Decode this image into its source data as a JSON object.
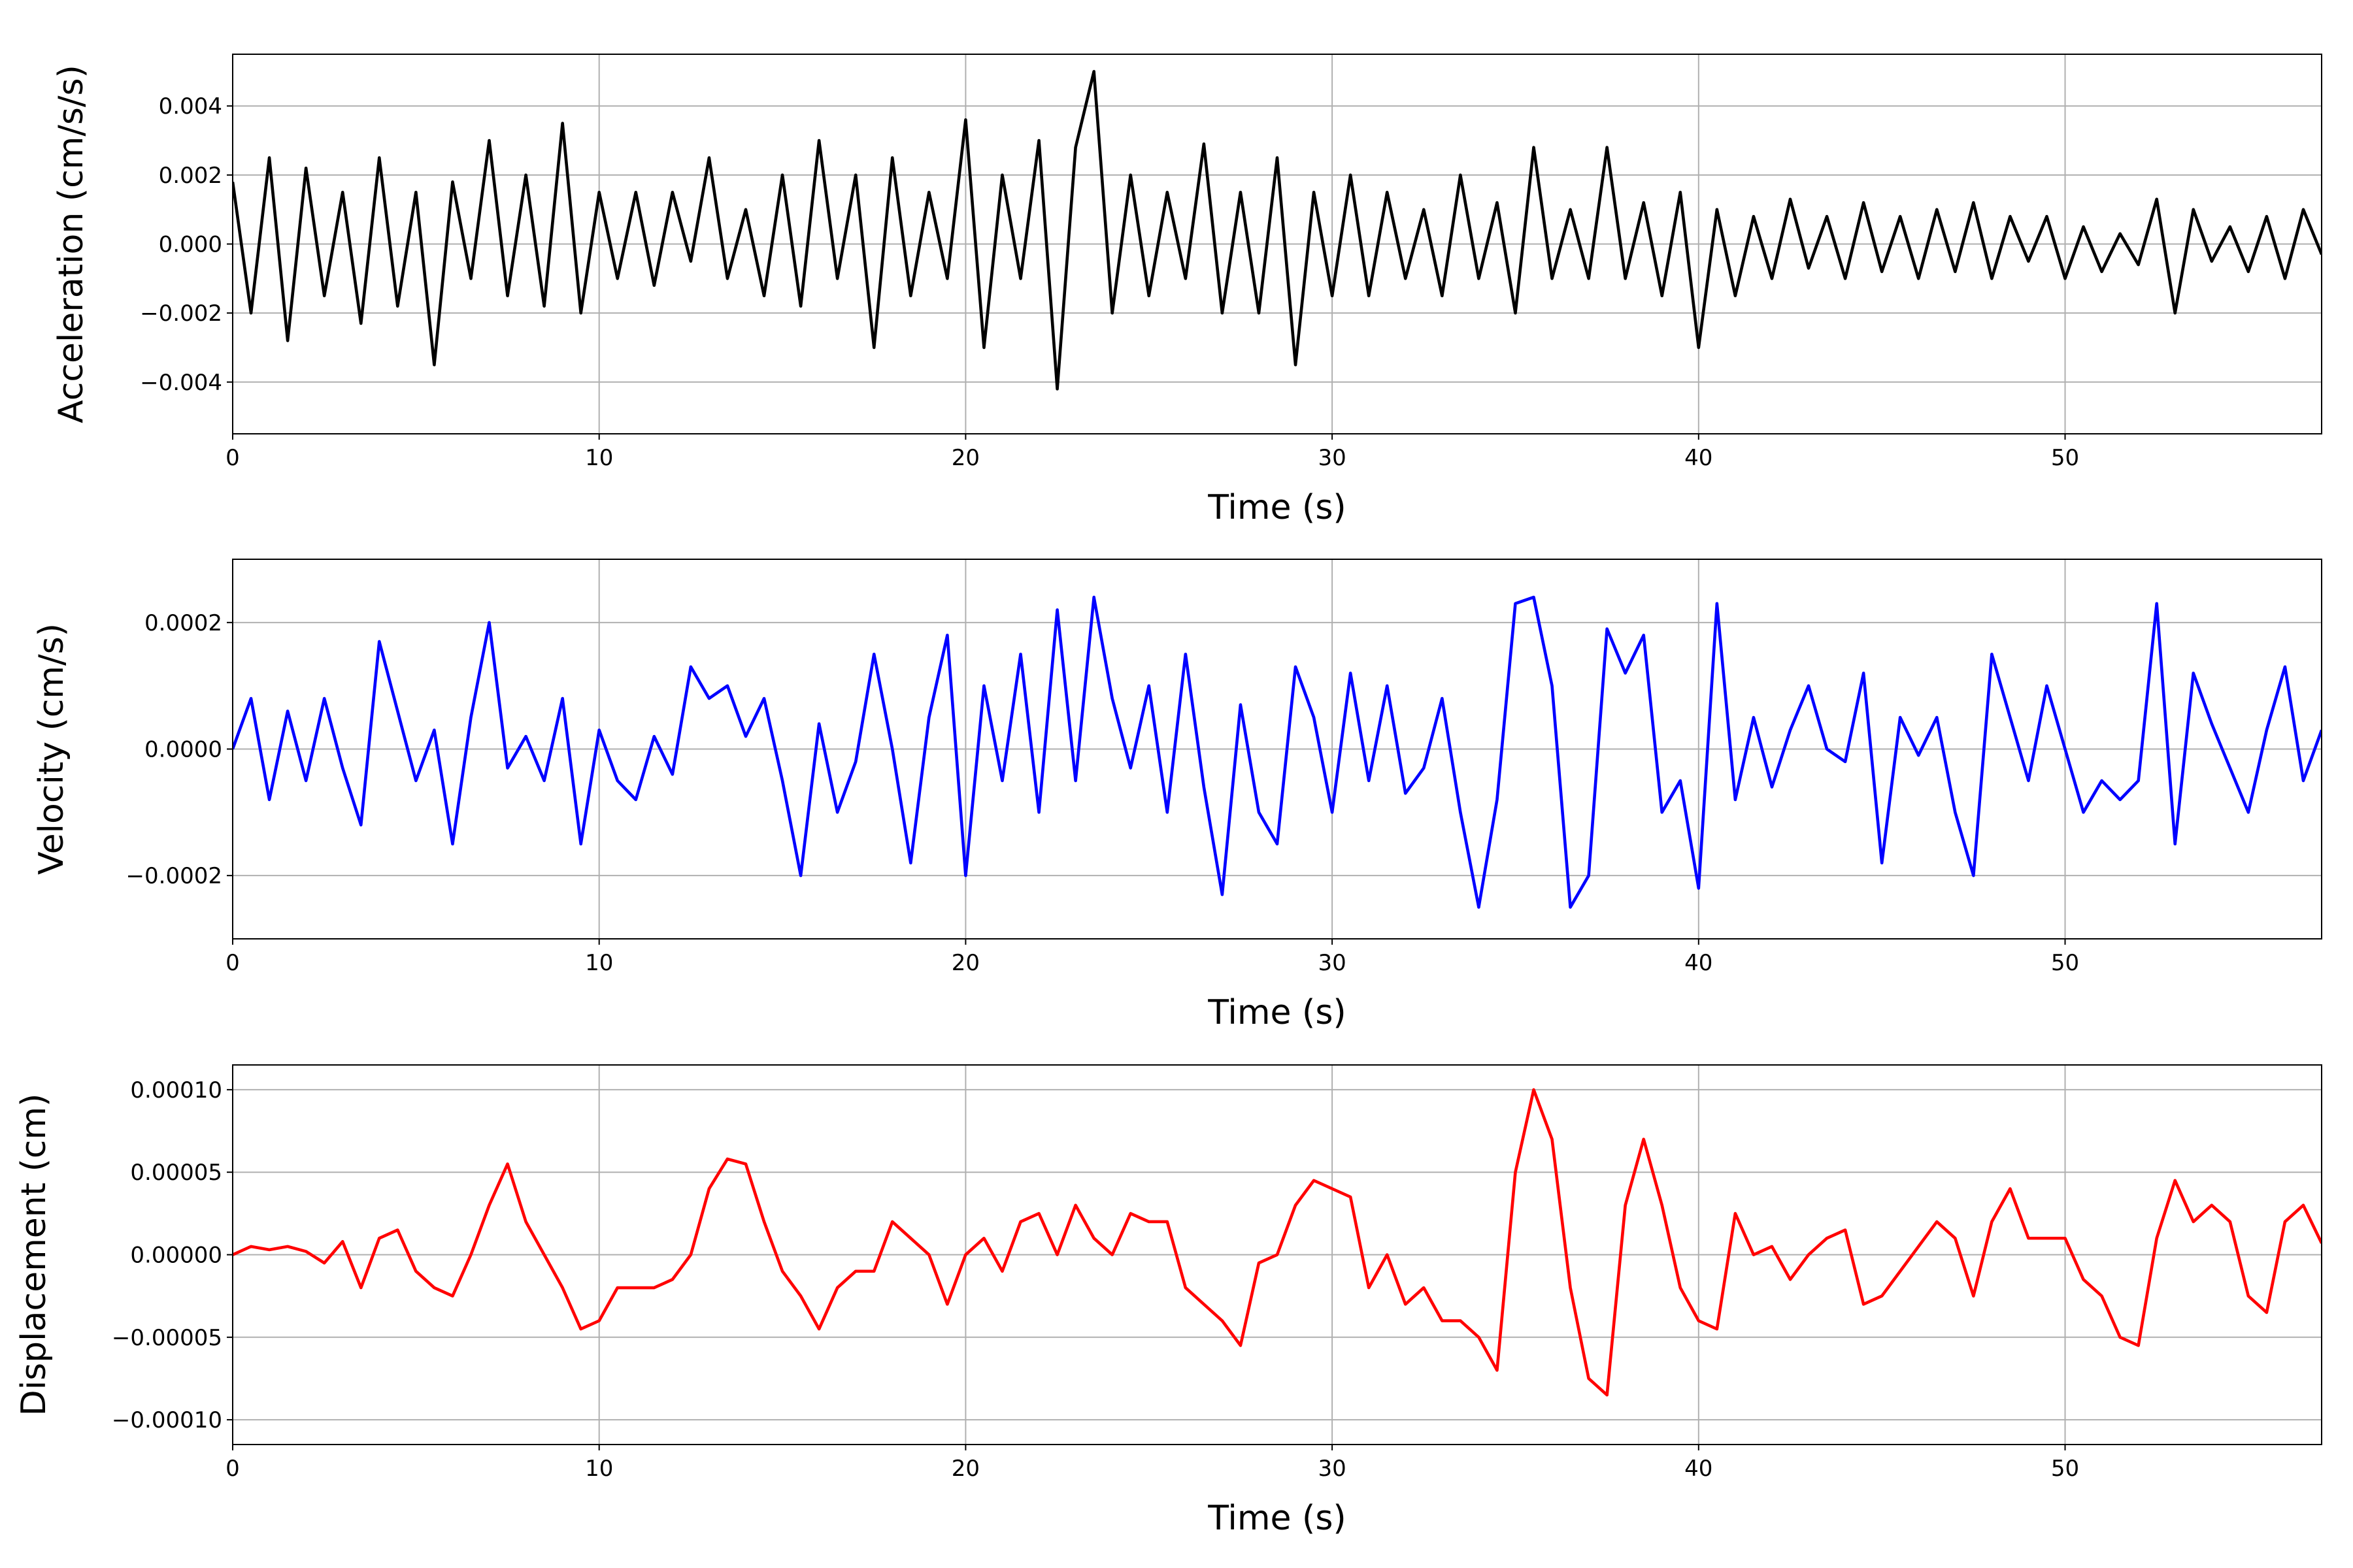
{
  "chart_data": [
    {
      "type": "line",
      "xlabel": "Time (s)",
      "ylabel": "Acceleration (cm/s/s)",
      "color": "#000000",
      "grid": true,
      "xlim": [
        0,
        57
      ],
      "ylim": [
        -0.0055,
        0.0055
      ],
      "xticks": [
        0,
        10,
        20,
        30,
        40,
        50
      ],
      "yticks": [
        {
          "value": -0.004,
          "label": "−0.004"
        },
        {
          "value": -0.002,
          "label": "−0.002"
        },
        {
          "value": 0,
          "label": "0.000"
        },
        0.002,
        0.004
      ],
      "x": [
        0,
        0.5,
        1,
        1.5,
        2,
        2.5,
        3,
        3.5,
        4,
        4.5,
        5,
        5.5,
        6,
        6.5,
        7,
        7.5,
        8,
        8.5,
        9,
        9.5,
        10,
        10.5,
        11,
        11.5,
        12,
        12.5,
        13,
        13.5,
        14,
        14.5,
        15,
        15.5,
        16,
        16.5,
        17,
        17.5,
        18,
        18.5,
        19,
        19.5,
        20,
        20.5,
        21,
        21.5,
        22,
        22.5,
        23,
        23.5,
        24,
        24.5,
        25,
        25.5,
        26,
        26.5,
        27,
        27.5,
        28,
        28.5,
        29,
        29.5,
        30,
        30.5,
        31,
        31.5,
        32,
        32.5,
        33,
        33.5,
        34,
        34.5,
        35,
        35.5,
        36,
        36.5,
        37,
        37.5,
        38,
        38.5,
        39,
        39.5,
        40,
        40.5,
        41,
        41.5,
        42,
        42.5,
        43,
        43.5,
        44,
        44.5,
        45,
        45.5,
        46,
        46.5,
        47,
        47.5,
        48,
        48.5,
        49,
        49.5,
        50,
        50.5,
        51,
        51.5,
        52,
        52.5,
        53,
        53.5,
        54,
        54.5,
        55,
        55.5,
        56,
        56.5,
        57
      ],
      "values": [
        0.0018,
        -0.002,
        0.0025,
        -0.0028,
        0.0022,
        -0.0015,
        0.0015,
        -0.0023,
        0.0025,
        -0.0018,
        0.0015,
        -0.0035,
        0.0018,
        -0.001,
        0.003,
        -0.0015,
        0.002,
        -0.0018,
        0.0035,
        -0.002,
        0.0015,
        -0.001,
        0.0015,
        -0.0012,
        0.0015,
        -0.0005,
        0.0025,
        -0.001,
        0.001,
        -0.0015,
        0.002,
        -0.0018,
        0.003,
        -0.001,
        0.002,
        -0.003,
        0.0025,
        -0.0015,
        0.0015,
        -0.001,
        0.0036,
        -0.003,
        0.002,
        -0.001,
        0.003,
        -0.0042,
        0.0028,
        0.005,
        -0.002,
        0.002,
        -0.0015,
        0.0015,
        -0.001,
        0.0029,
        -0.002,
        0.0015,
        -0.002,
        0.0025,
        -0.0035,
        0.0015,
        -0.0015,
        0.002,
        -0.0015,
        0.0015,
        -0.001,
        0.001,
        -0.0015,
        0.002,
        -0.001,
        0.0012,
        -0.002,
        0.0028,
        -0.001,
        0.001,
        -0.001,
        0.0028,
        -0.001,
        0.0012,
        -0.0015,
        0.0015,
        -0.003,
        0.001,
        -0.0015,
        0.0008,
        -0.001,
        0.0013,
        -0.0007,
        0.0008,
        -0.001,
        0.0012,
        -0.0008,
        0.0008,
        -0.001,
        0.001,
        -0.0008,
        0.0012,
        -0.001,
        0.0008,
        -0.0005,
        0.0008,
        -0.001,
        0.0005,
        -0.0008,
        0.0003,
        -0.0006,
        0.0013,
        -0.002,
        0.001,
        -0.0005,
        0.0005,
        -0.0008,
        0.0008,
        -0.001,
        0.001,
        -0.0003
      ]
    },
    {
      "type": "line",
      "xlabel": "Time (s)",
      "ylabel": "Velocity (cm/s)",
      "color": "#0000ff",
      "grid": true,
      "xlim": [
        0,
        57
      ],
      "ylim": [
        -0.0003,
        0.0003
      ],
      "xticks": [
        0,
        10,
        20,
        30,
        40,
        50
      ],
      "yticks": [
        {
          "value": -0.0002,
          "label": "−0.0002"
        },
        {
          "value": 0,
          "label": "0.0000"
        },
        0.0002
      ],
      "x": [
        0,
        0.5,
        1,
        1.5,
        2,
        2.5,
        3,
        3.5,
        4,
        4.5,
        5,
        5.5,
        6,
        6.5,
        7,
        7.5,
        8,
        8.5,
        9,
        9.5,
        10,
        10.5,
        11,
        11.5,
        12,
        12.5,
        13,
        13.5,
        14,
        14.5,
        15,
        15.5,
        16,
        16.5,
        17,
        17.5,
        18,
        18.5,
        19,
        19.5,
        20,
        20.5,
        21,
        21.5,
        22,
        22.5,
        23,
        23.5,
        24,
        24.5,
        25,
        25.5,
        26,
        26.5,
        27,
        27.5,
        28,
        28.5,
        29,
        29.5,
        30,
        30.5,
        31,
        31.5,
        32,
        32.5,
        33,
        33.5,
        34,
        34.5,
        35,
        35.5,
        36,
        36.5,
        37,
        37.5,
        38,
        38.5,
        39,
        39.5,
        40,
        40.5,
        41,
        41.5,
        42,
        42.5,
        43,
        43.5,
        44,
        44.5,
        45,
        45.5,
        46,
        46.5,
        47,
        47.5,
        48,
        48.5,
        49,
        49.5,
        50,
        50.5,
        51,
        51.5,
        52,
        52.5,
        53,
        53.5,
        54,
        54.5,
        55,
        55.5,
        56,
        56.5,
        57
      ],
      "values": [
        0,
        8e-05,
        -8e-05,
        6e-05,
        -5e-05,
        8e-05,
        -3e-05,
        -0.00012,
        0.00017,
        6e-05,
        -5e-05,
        3e-05,
        -0.00015,
        5e-05,
        0.0002,
        -3e-05,
        2e-05,
        -5e-05,
        8e-05,
        -0.00015,
        3e-05,
        -5e-05,
        -8e-05,
        2e-05,
        -4e-05,
        0.00013,
        8e-05,
        0.0001,
        2e-05,
        8e-05,
        -5e-05,
        -0.0002,
        4e-05,
        -0.0001,
        -2e-05,
        0.00015,
        0,
        -0.00018,
        5e-05,
        0.00018,
        -0.0002,
        0.0001,
        -5e-05,
        0.00015,
        -0.0001,
        0.00022,
        -5e-05,
        0.00024,
        8e-05,
        -3e-05,
        0.0001,
        -0.0001,
        0.00015,
        -6e-05,
        -0.00023,
        7e-05,
        -0.0001,
        -0.00015,
        0.00013,
        5e-05,
        -0.0001,
        0.00012,
        -5e-05,
        0.0001,
        -7e-05,
        -3e-05,
        8e-05,
        -0.0001,
        -0.00025,
        -8e-05,
        0.00023,
        0.00024,
        0.0001,
        -0.00025,
        -0.0002,
        0.00019,
        0.00012,
        0.00018,
        -0.0001,
        -5e-05,
        -0.00022,
        0.00023,
        -8e-05,
        5e-05,
        -6e-05,
        3e-05,
        0.0001,
        0,
        -2e-05,
        0.00012,
        -0.00018,
        5e-05,
        -1e-05,
        5e-05,
        -0.0001,
        -0.0002,
        0.00015,
        5e-05,
        -5e-05,
        0.0001,
        0,
        -0.0001,
        -5e-05,
        -8e-05,
        -5e-05,
        0.00023,
        -0.00015,
        0.00012,
        4e-05,
        -3e-05,
        -0.0001,
        3e-05,
        0.00013,
        -5e-05,
        3e-05
      ]
    },
    {
      "type": "line",
      "xlabel": "Time (s)",
      "ylabel": "Displacement (cm)",
      "color": "#ff0000",
      "grid": true,
      "xlim": [
        0,
        57
      ],
      "ylim": [
        -0.000115,
        0.000115
      ],
      "xticks": [
        0,
        10,
        20,
        30,
        40,
        50
      ],
      "yticks": [
        {
          "value": -0.0001,
          "label": "−0.00010"
        },
        {
          "value": -5e-05,
          "label": "−0.00005"
        },
        {
          "value": 0,
          "label": "0.00000"
        },
        {
          "value": 5e-05,
          "label": "0.00005"
        },
        {
          "value": 0.0001,
          "label": "0.00010"
        }
      ],
      "x": [
        0,
        0.5,
        1,
        1.5,
        2,
        2.5,
        3,
        3.5,
        4,
        4.5,
        5,
        5.5,
        6,
        6.5,
        7,
        7.5,
        8,
        8.5,
        9,
        9.5,
        10,
        10.5,
        11,
        11.5,
        12,
        12.5,
        13,
        13.5,
        14,
        14.5,
        15,
        15.5,
        16,
        16.5,
        17,
        17.5,
        18,
        18.5,
        19,
        19.5,
        20,
        20.5,
        21,
        21.5,
        22,
        22.5,
        23,
        23.5,
        24,
        24.5,
        25,
        25.5,
        26,
        26.5,
        27,
        27.5,
        28,
        28.5,
        29,
        29.5,
        30,
        30.5,
        31,
        31.5,
        32,
        32.5,
        33,
        33.5,
        34,
        34.5,
        35,
        35.5,
        36,
        36.5,
        37,
        37.5,
        38,
        38.5,
        39,
        39.5,
        40,
        40.5,
        41,
        41.5,
        42,
        42.5,
        43,
        43.5,
        44,
        44.5,
        45,
        45.5,
        46,
        46.5,
        47,
        47.5,
        48,
        48.5,
        49,
        49.5,
        50,
        50.5,
        51,
        51.5,
        52,
        52.5,
        53,
        53.5,
        54,
        54.5,
        55,
        55.5,
        56,
        56.5,
        57
      ],
      "values": [
        0,
        5e-06,
        3e-06,
        5e-06,
        2e-06,
        -5e-06,
        8e-06,
        -2e-05,
        1e-05,
        1.5e-05,
        -1e-05,
        -2e-05,
        -2.5e-05,
        0,
        3e-05,
        5.5e-05,
        2e-05,
        0,
        -2e-05,
        -4.5e-05,
        -4e-05,
        -2e-05,
        -2e-05,
        -2e-05,
        -1.5e-05,
        0,
        4e-05,
        5.8e-05,
        5.5e-05,
        2e-05,
        -1e-05,
        -2.5e-05,
        -4.5e-05,
        -2e-05,
        -1e-05,
        -1e-05,
        2e-05,
        1e-05,
        0,
        -3e-05,
        0,
        1e-05,
        -1e-05,
        2e-05,
        2.5e-05,
        0,
        3e-05,
        1e-05,
        0,
        2.5e-05,
        2e-05,
        2e-05,
        -2e-05,
        -3e-05,
        -4e-05,
        -5.5e-05,
        -5e-06,
        0,
        3e-05,
        4.5e-05,
        4e-05,
        3.5e-05,
        -2e-05,
        0,
        -3e-05,
        -2e-05,
        -4e-05,
        -4e-05,
        -5e-05,
        -7e-05,
        5e-05,
        0.0001,
        7e-05,
        -2e-05,
        -7.5e-05,
        -8.5e-05,
        3e-05,
        7e-05,
        3e-05,
        -2e-05,
        -4e-05,
        -4.5e-05,
        2.5e-05,
        0,
        5e-06,
        -1.5e-05,
        0,
        1e-05,
        1.5e-05,
        -3e-05,
        -2.5e-05,
        -1e-05,
        5e-06,
        2e-05,
        1e-05,
        -2.5e-05,
        2e-05,
        4e-05,
        1e-05,
        1e-05,
        1e-05,
        -1.5e-05,
        -2.5e-05,
        -5e-05,
        -5.5e-05,
        1e-05,
        4.5e-05,
        2e-05,
        3e-05,
        2e-05,
        -2.5e-05,
        -3.5e-05,
        2e-05,
        3e-05,
        7e-06
      ]
    }
  ]
}
